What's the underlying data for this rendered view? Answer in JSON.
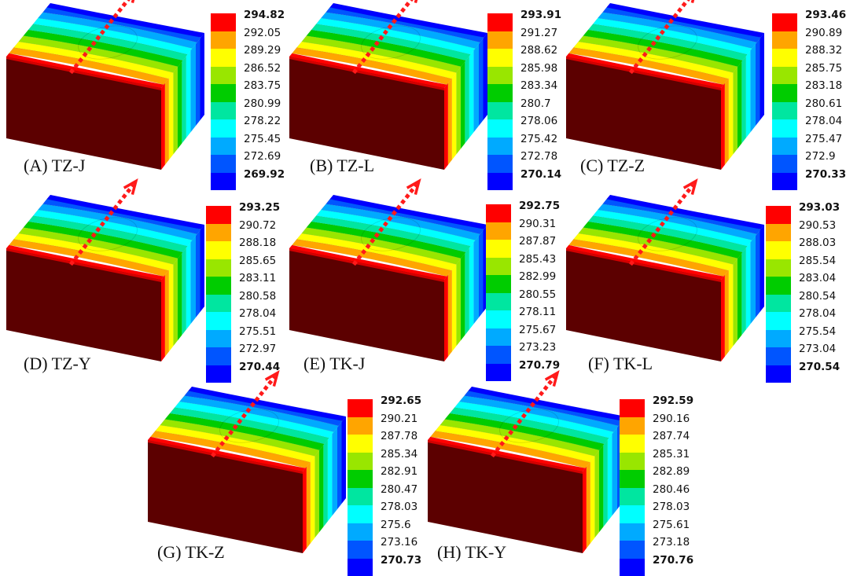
{
  "palette": [
    "#ff0000",
    "#ffa500",
    "#ffff00",
    "#99e600",
    "#00cc00",
    "#00e6a0",
    "#00ffff",
    "#00aaff",
    "#0055ff",
    "#0000ff"
  ],
  "panels": [
    {
      "label": "(A) TZ-J",
      "legend": [
        "294.82",
        "292.05",
        "289.29",
        "286.52",
        "283.75",
        "280.99",
        "278.22",
        "275.45",
        "272.69",
        "269.92"
      ]
    },
    {
      "label": "(B) TZ-L",
      "legend": [
        "293.91",
        "291.27",
        "288.62",
        "285.98",
        "283.34",
        "280.7",
        "278.06",
        "275.42",
        "272.78",
        "270.14"
      ]
    },
    {
      "label": "(C) TZ-Z",
      "legend": [
        "293.46",
        "290.89",
        "288.32",
        "285.75",
        "283.18",
        "280.61",
        "278.04",
        "275.47",
        "272.9",
        "270.33"
      ]
    },
    {
      "label": "(D) TZ-Y",
      "legend": [
        "293.25",
        "290.72",
        "288.18",
        "285.65",
        "283.11",
        "280.58",
        "278.04",
        "275.51",
        "272.97",
        "270.44"
      ]
    },
    {
      "label": "(E) TK-J",
      "legend": [
        "292.75",
        "290.31",
        "287.87",
        "285.43",
        "282.99",
        "280.55",
        "278.11",
        "275.67",
        "273.23",
        "270.79"
      ]
    },
    {
      "label": "(F) TK-L",
      "legend": [
        "293.03",
        "290.53",
        "288.03",
        "285.54",
        "283.04",
        "280.54",
        "278.04",
        "275.54",
        "273.04",
        "270.54"
      ]
    },
    {
      "label": "(G) TK-Z",
      "legend": [
        "292.65",
        "290.21",
        "287.78",
        "285.34",
        "282.91",
        "280.47",
        "278.03",
        "275.6",
        "273.16",
        "270.73"
      ]
    },
    {
      "label": "(H) TK-Y",
      "legend": [
        "292.59",
        "290.16",
        "287.74",
        "285.31",
        "282.89",
        "280.46",
        "278.03",
        "275.61",
        "273.18",
        "270.76"
      ]
    }
  ]
}
